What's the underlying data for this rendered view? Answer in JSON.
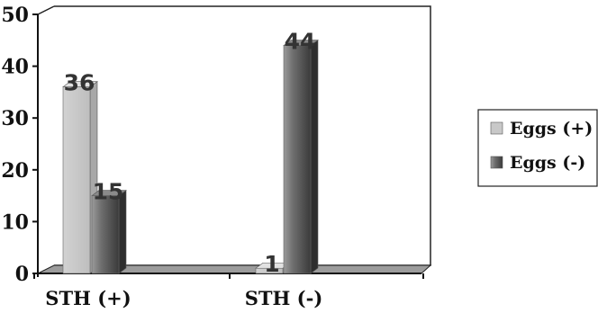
{
  "chart_data": {
    "type": "bar",
    "categories": [
      "STH (+)",
      "STH (-)"
    ],
    "series": [
      {
        "name": "Eggs (+)",
        "values": [
          36,
          1
        ],
        "color": "#c8c8c8"
      },
      {
        "name": "Eggs (-)",
        "values": [
          15,
          44
        ],
        "color": "#6e6e6e"
      }
    ],
    "ylim": [
      0,
      50
    ],
    "yticks": [
      "0",
      "10",
      "20",
      "30",
      "40",
      "50"
    ],
    "legend_position": "right",
    "grid": false,
    "style": "3d",
    "show_data_labels": true
  }
}
